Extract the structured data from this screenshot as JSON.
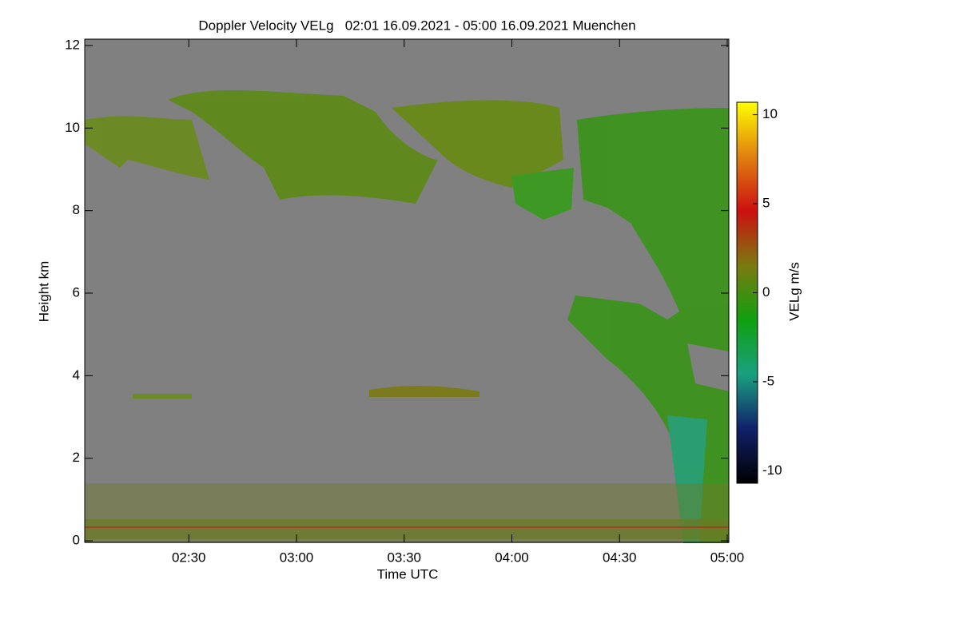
{
  "chart_data": {
    "type": "heatmap",
    "title": "Doppler Velocity VELg   02:01 16.09.2021 - 05:00 16.09.2021 Muenchen",
    "xlabel": "Time UTC",
    "ylabel": "Height km",
    "xlim": [
      121,
      300
    ],
    "xticks": [
      {
        "value": 150,
        "label": "02:30"
      },
      {
        "value": 180,
        "label": "03:00"
      },
      {
        "value": 210,
        "label": "03:30"
      },
      {
        "value": 240,
        "label": "04:00"
      },
      {
        "value": 270,
        "label": "04:30"
      },
      {
        "value": 300,
        "label": "05:00"
      }
    ],
    "ylim": [
      0,
      12
    ],
    "yticks": [
      0,
      2,
      4,
      6,
      8,
      10,
      12
    ],
    "background": "#808080",
    "colorbar": {
      "label": "VELg m/s",
      "zlim": [
        -10.7,
        10.7
      ],
      "ticks": [
        -10,
        -5,
        0,
        5,
        10
      ],
      "colors": [
        "#000000",
        "#10206a",
        "#1aa080",
        "#10a010",
        "#7a7a10",
        "#cc1010",
        "#e08010",
        "#ffff00"
      ]
    }
  }
}
